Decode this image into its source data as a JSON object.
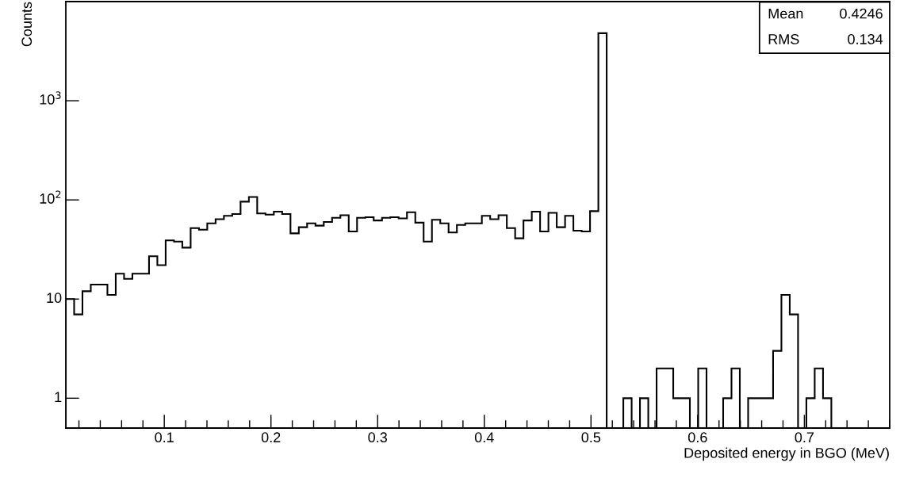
{
  "chart_data": {
    "type": "histogram",
    "xlabel": "Deposited energy in BGO (MeV)",
    "ylabel": "Counts",
    "bins": [
      0.0077,
      0.0155,
      0.0233,
      0.0311,
      0.0389,
      0.0467,
      0.0545,
      0.0623,
      0.0701,
      0.0779,
      0.0857,
      0.0935,
      0.1013,
      0.1091,
      0.1169,
      0.1247,
      0.1325,
      0.1403,
      0.1481,
      0.1559,
      0.1637,
      0.1715,
      0.1793,
      0.1871,
      0.1949,
      0.2027,
      0.2105,
      0.2183,
      0.2261,
      0.2339,
      0.2417,
      0.2495,
      0.2573,
      0.2651,
      0.2729,
      0.2807,
      0.2885,
      0.2963,
      0.3041,
      0.3119,
      0.3197,
      0.3275,
      0.3353,
      0.3431,
      0.3509,
      0.3587,
      0.3665,
      0.3743,
      0.3821,
      0.3899,
      0.3977,
      0.4055,
      0.4133,
      0.4211,
      0.4289,
      0.4367,
      0.4445,
      0.4523,
      0.4601,
      0.4679,
      0.4757,
      0.4835,
      0.4913,
      0.4991,
      0.5069,
      0.5147,
      0.5225,
      0.5303,
      0.5381,
      0.5459,
      0.5537,
      0.5615,
      0.5693,
      0.5771,
      0.5849,
      0.5927,
      0.6005,
      0.6083,
      0.6161,
      0.6239,
      0.6317,
      0.6395,
      0.6473,
      0.6551,
      0.6629,
      0.6707,
      0.6785,
      0.6863,
      0.6941,
      0.7019,
      0.7097,
      0.7175,
      0.7253,
      0.7331,
      0.7409,
      0.7487,
      0.7565,
      0.7643,
      0.7721,
      0.7799
    ],
    "values": [
      10,
      7,
      12,
      14,
      14,
      11,
      18,
      16,
      18,
      18,
      27,
      22,
      39,
      38,
      33,
      52,
      50,
      58,
      64,
      69,
      72,
      96,
      107,
      73,
      71,
      76,
      72,
      46,
      53,
      58,
      55,
      60,
      66,
      70,
      48,
      66,
      67,
      62,
      66,
      67,
      65,
      75,
      59,
      38,
      63,
      58,
      47,
      56,
      58,
      58,
      69,
      64,
      70,
      52,
      41,
      62,
      76,
      48,
      74,
      53,
      69,
      49,
      48,
      77,
      4800,
      null,
      null,
      1,
      null,
      1,
      null,
      2,
      2,
      1,
      1,
      null,
      2,
      null,
      null,
      1,
      2,
      null,
      1,
      1,
      1,
      3,
      11,
      7,
      null,
      1,
      2,
      1,
      null,
      null,
      null,
      null,
      null,
      null,
      null
    ],
    "color": "#000000",
    "log": "y",
    "xlim": [
      0.0077,
      0.78
    ],
    "ylim": [
      0.5,
      10000
    ],
    "xticks": [
      0.1,
      0.2,
      0.3,
      0.4,
      0.5,
      0.6,
      0.7
    ],
    "yticks": [
      1,
      10,
      {
        "value": 100,
        "label": "10$^{2}$"
      },
      {
        "value": 1000,
        "label": "10$^{3}$"
      }
    ],
    "grid": false,
    "legend": false,
    "annotations": [
      "Mean",
      "0.4246",
      "RMS",
      "0.134"
    ]
  }
}
